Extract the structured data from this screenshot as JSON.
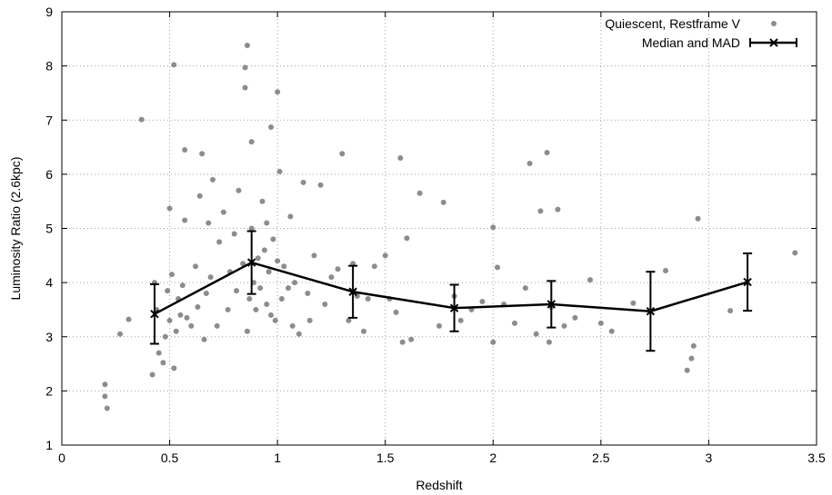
{
  "chart_data": {
    "type": "scatter",
    "title": "",
    "xlabel": "Redshift",
    "ylabel": "Luminosity Ratio (2.6kpc)",
    "xlim": [
      0,
      3.5
    ],
    "ylim": [
      1,
      9
    ],
    "x_ticks": [
      0,
      0.5,
      1,
      1.5,
      2,
      2.5,
      3,
      3.5
    ],
    "x_tick_labels": [
      "0",
      "0.5",
      "1",
      "1.5",
      "2",
      "2.5",
      "3",
      "3.5"
    ],
    "y_ticks": [
      1,
      2,
      3,
      4,
      5,
      6,
      7,
      8,
      9
    ],
    "y_tick_labels": [
      "1",
      "2",
      "3",
      "4",
      "5",
      "6",
      "7",
      "8",
      "9"
    ],
    "grid": true,
    "legend_position": "top-right",
    "colors": {
      "scatter": "#8c8c8c",
      "median": "#000000"
    },
    "series": [
      {
        "name": "Quiescent, Restframe V",
        "kind": "points",
        "points": [
          [
            0.2,
            2.12
          ],
          [
            0.2,
            1.9
          ],
          [
            0.21,
            1.68
          ],
          [
            0.27,
            3.05
          ],
          [
            0.31,
            3.32
          ],
          [
            0.37,
            7.01
          ],
          [
            0.42,
            2.3
          ],
          [
            0.43,
            4.0
          ],
          [
            0.44,
            3.5
          ],
          [
            0.45,
            2.7
          ],
          [
            0.47,
            2.52
          ],
          [
            0.48,
            3.0
          ],
          [
            0.49,
            3.85
          ],
          [
            0.5,
            5.37
          ],
          [
            0.5,
            3.3
          ],
          [
            0.51,
            4.15
          ],
          [
            0.52,
            8.02
          ],
          [
            0.52,
            2.42
          ],
          [
            0.53,
            3.1
          ],
          [
            0.54,
            3.7
          ],
          [
            0.55,
            3.4
          ],
          [
            0.56,
            3.95
          ],
          [
            0.57,
            5.15
          ],
          [
            0.57,
            6.45
          ],
          [
            0.58,
            3.35
          ],
          [
            0.6,
            3.2
          ],
          [
            0.62,
            4.3
          ],
          [
            0.63,
            3.55
          ],
          [
            0.64,
            5.6
          ],
          [
            0.65,
            6.38
          ],
          [
            0.66,
            2.95
          ],
          [
            0.67,
            3.8
          ],
          [
            0.68,
            5.1
          ],
          [
            0.69,
            4.1
          ],
          [
            0.7,
            5.9
          ],
          [
            0.72,
            3.2
          ],
          [
            0.73,
            4.75
          ],
          [
            0.75,
            5.3
          ],
          [
            0.77,
            3.5
          ],
          [
            0.78,
            4.2
          ],
          [
            0.8,
            4.9
          ],
          [
            0.81,
            3.85
          ],
          [
            0.82,
            5.7
          ],
          [
            0.84,
            4.35
          ],
          [
            0.85,
            7.6
          ],
          [
            0.85,
            7.97
          ],
          [
            0.86,
            8.38
          ],
          [
            0.86,
            3.1
          ],
          [
            0.87,
            3.7
          ],
          [
            0.88,
            6.6
          ],
          [
            0.88,
            5.0
          ],
          [
            0.89,
            4.0
          ],
          [
            0.9,
            3.5
          ],
          [
            0.91,
            4.45
          ],
          [
            0.92,
            3.9
          ],
          [
            0.93,
            5.5
          ],
          [
            0.94,
            4.6
          ],
          [
            0.95,
            5.1
          ],
          [
            0.95,
            3.6
          ],
          [
            0.96,
            4.2
          ],
          [
            0.97,
            6.87
          ],
          [
            0.97,
            3.4
          ],
          [
            0.98,
            4.8
          ],
          [
            0.99,
            3.3
          ],
          [
            1.0,
            7.52
          ],
          [
            1.0,
            4.4
          ],
          [
            1.01,
            6.05
          ],
          [
            1.02,
            3.7
          ],
          [
            1.03,
            4.3
          ],
          [
            1.05,
            3.9
          ],
          [
            1.06,
            5.22
          ],
          [
            1.07,
            3.2
          ],
          [
            1.08,
            4.0
          ],
          [
            1.1,
            3.05
          ],
          [
            1.12,
            5.85
          ],
          [
            1.14,
            3.8
          ],
          [
            1.15,
            3.3
          ],
          [
            1.17,
            4.5
          ],
          [
            1.2,
            5.8
          ],
          [
            1.22,
            3.6
          ],
          [
            1.25,
            4.1
          ],
          [
            1.28,
            4.25
          ],
          [
            1.3,
            6.38
          ],
          [
            1.33,
            3.3
          ],
          [
            1.35,
            4.35
          ],
          [
            1.37,
            3.75
          ],
          [
            1.4,
            3.1
          ],
          [
            1.42,
            3.7
          ],
          [
            1.45,
            4.3
          ],
          [
            1.5,
            4.5
          ],
          [
            1.52,
            3.7
          ],
          [
            1.55,
            3.45
          ],
          [
            1.57,
            6.3
          ],
          [
            1.58,
            2.9
          ],
          [
            1.6,
            4.82
          ],
          [
            1.62,
            2.95
          ],
          [
            1.66,
            5.65
          ],
          [
            1.75,
            3.2
          ],
          [
            1.77,
            5.48
          ],
          [
            1.82,
            3.75
          ],
          [
            1.85,
            3.3
          ],
          [
            1.9,
            3.5
          ],
          [
            1.95,
            3.65
          ],
          [
            2.0,
            5.02
          ],
          [
            2.0,
            2.9
          ],
          [
            2.02,
            4.28
          ],
          [
            2.05,
            3.6
          ],
          [
            2.1,
            3.25
          ],
          [
            2.15,
            3.9
          ],
          [
            2.17,
            6.2
          ],
          [
            2.2,
            3.05
          ],
          [
            2.22,
            5.32
          ],
          [
            2.25,
            6.4
          ],
          [
            2.26,
            2.9
          ],
          [
            2.27,
            3.55
          ],
          [
            2.3,
            5.35
          ],
          [
            2.33,
            3.2
          ],
          [
            2.38,
            3.35
          ],
          [
            2.45,
            4.05
          ],
          [
            2.5,
            3.25
          ],
          [
            2.55,
            3.1
          ],
          [
            2.65,
            3.62
          ],
          [
            2.8,
            4.22
          ],
          [
            2.9,
            2.38
          ],
          [
            2.92,
            2.6
          ],
          [
            2.93,
            2.83
          ],
          [
            2.95,
            5.18
          ],
          [
            3.1,
            3.48
          ],
          [
            3.4,
            4.55
          ]
        ]
      },
      {
        "name": "Median and MAD",
        "kind": "line-errorbars",
        "points": [
          {
            "x": 0.43,
            "y": 3.42,
            "err": 0.55
          },
          {
            "x": 0.88,
            "y": 4.37,
            "err": 0.58
          },
          {
            "x": 1.35,
            "y": 3.83,
            "err": 0.48
          },
          {
            "x": 1.82,
            "y": 3.53,
            "err": 0.43
          },
          {
            "x": 2.27,
            "y": 3.6,
            "err": 0.43
          },
          {
            "x": 2.73,
            "y": 3.47,
            "err": 0.73
          },
          {
            "x": 3.18,
            "y": 4.01,
            "err": 0.53
          }
        ]
      }
    ]
  }
}
